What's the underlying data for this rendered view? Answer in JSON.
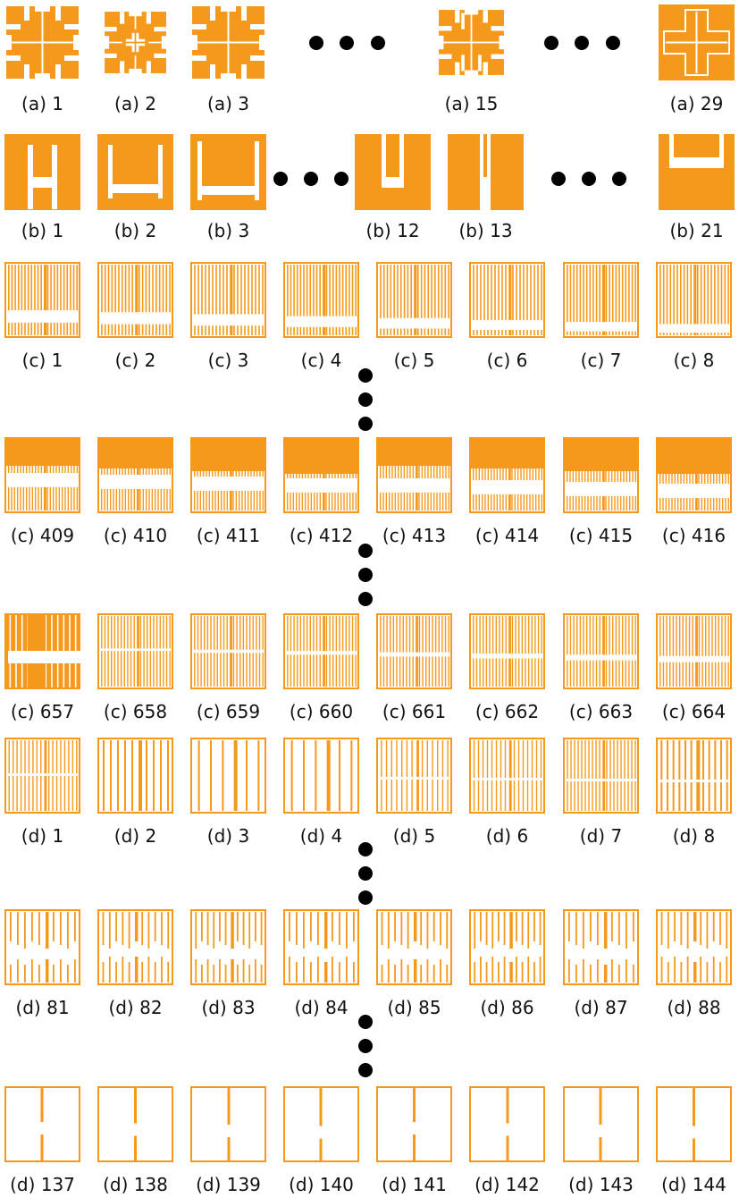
{
  "colors": {
    "fill": "#f5991c",
    "background": "#ffffff",
    "ink": "#000000"
  },
  "rows": [
    {
      "id": "a",
      "labels": [
        "(a) 1",
        "(a) 2",
        "(a) 3",
        "(a) 15",
        "(a) 29"
      ]
    },
    {
      "id": "b",
      "labels": [
        "(b) 1",
        "(b) 2",
        "(b) 3",
        "(b) 12",
        "(b) 13",
        "(b) 21"
      ]
    },
    {
      "id": "c1",
      "labels": [
        "(c) 1",
        "(c) 2",
        "(c) 3",
        "(c) 4",
        "(c) 5",
        "(c) 6",
        "(c) 7",
        "(c) 8"
      ]
    },
    {
      "id": "c409",
      "labels": [
        "(c) 409",
        "(c) 410",
        "(c) 411",
        "(c) 412",
        "(c) 413",
        "(c) 414",
        "(c) 415",
        "(c) 416"
      ]
    },
    {
      "id": "c657",
      "labels": [
        "(c) 657",
        "(c) 658",
        "(c) 659",
        "(c) 660",
        "(c) 661",
        "(c) 662",
        "(c) 663",
        "(c) 664"
      ]
    },
    {
      "id": "d1",
      "labels": [
        "(d) 1",
        "(d) 2",
        "(d) 3",
        "(d) 4",
        "(d) 5",
        "(d) 6",
        "(d) 7",
        "(d) 8"
      ]
    },
    {
      "id": "d81",
      "labels": [
        "(d) 81",
        "(d) 82",
        "(d) 83",
        "(d) 84",
        "(d) 85",
        "(d) 86",
        "(d) 87",
        "(d) 88"
      ]
    },
    {
      "id": "d137",
      "labels": [
        "(d) 137",
        "(d) 138",
        "(d) 139",
        "(d) 140",
        "(d) 141",
        "(d) 142",
        "(d) 143",
        "(d) 144"
      ]
    }
  ]
}
